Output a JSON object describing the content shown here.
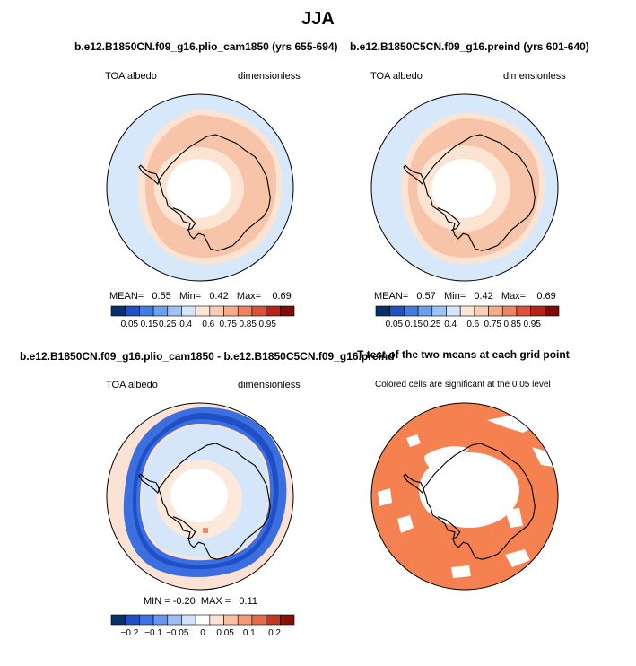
{
  "figure": {
    "title": "JJA"
  },
  "colorbars": {
    "albedo": {
      "colors": [
        "#08306b",
        "#2150c0",
        "#3f7de0",
        "#6a9eee",
        "#9ec3f7",
        "#d3e6fb",
        "#fde6d6",
        "#fbcdb5",
        "#f6ab8a",
        "#ec8460",
        "#d9533a",
        "#b42417",
        "#7f0c08"
      ],
      "labels": [
        "0.05",
        "0.15",
        "0.25",
        "0.4",
        "0.6",
        "0.75",
        "0.85",
        "0.95"
      ]
    },
    "diff": {
      "colors": [
        "#08306b",
        "#1f4fc6",
        "#3b72e4",
        "#6896ee",
        "#9dbdf6",
        "#d1e3fb",
        "#ffffff",
        "#fde2d4",
        "#f9c0a4",
        "#f29a76",
        "#e46b47",
        "#c4381f",
        "#87100a"
      ],
      "labels": [
        "−0.2",
        "−0.1",
        "−0.05",
        "0",
        "0.05",
        "0.1",
        "0.2"
      ]
    }
  },
  "panels": [
    {
      "title": "b.e12.B1850CN.f09_g16.plio_cam1850 (yrs 655-694)",
      "left_label": "TOA albedo",
      "right_label": "dimensionless",
      "stats": {
        "mean_label": "MEAN=",
        "mean": "0.55",
        "min_label": "Min=",
        "min": "0.42",
        "max_label": "Max=",
        "max": "0.69"
      }
    },
    {
      "title": "b.e12.B1850C5CN.f09_g16.preind (yrs 601-640)",
      "left_label": "TOA albedo",
      "right_label": "dimensionless",
      "stats": {
        "mean_label": "MEAN=",
        "mean": "0.57",
        "min_label": "Min=",
        "min": "0.42",
        "max_label": "Max=",
        "max": "0.69"
      }
    },
    {
      "title": "b.e12.B1850CN.f09_g16.plio_cam1850 - b.e12.B1850C5CN.f09_g16.preind",
      "left_label": "TOA albedo",
      "right_label": "dimensionless",
      "stats": {
        "min_label": "MIN =",
        "min": "-0.20",
        "max_label": "MAX =",
        "max": "0.11"
      }
    },
    {
      "title": "T-test of the two means at each grid point",
      "subtitle": "Colored cells are significant at the 0.05 level"
    }
  ],
  "chart_data": [
    {
      "type": "heatmap",
      "map": "polar-stereographic (South Pole)",
      "variable": "TOA albedo",
      "units": "dimensionless",
      "season": "JJA",
      "case": "b.e12.B1850CN.f09_g16.plio_cam1850 (yrs 655-694)",
      "mean": 0.55,
      "min": 0.42,
      "max": 0.69,
      "contour_levels": [
        0.05,
        0.15,
        0.25,
        0.4,
        0.6,
        0.75,
        0.85,
        0.95
      ]
    },
    {
      "type": "heatmap",
      "map": "polar-stereographic (South Pole)",
      "variable": "TOA albedo",
      "units": "dimensionless",
      "season": "JJA",
      "case": "b.e12.B1850C5CN.f09_g16.preind (yrs 601-640)",
      "mean": 0.57,
      "min": 0.42,
      "max": 0.69,
      "contour_levels": [
        0.05,
        0.15,
        0.25,
        0.4,
        0.6,
        0.75,
        0.85,
        0.95
      ]
    },
    {
      "type": "heatmap",
      "map": "polar-stereographic (South Pole)",
      "variable": "TOA albedo difference",
      "units": "dimensionless",
      "case": "b.e12.B1850CN.f09_g16.plio_cam1850 - b.e12.B1850C5CN.f09_g16.preind",
      "min": -0.2,
      "max": 0.11,
      "contour_levels": [
        -0.2,
        -0.1,
        -0.05,
        0,
        0.05,
        0.1,
        0.2
      ]
    },
    {
      "type": "heatmap",
      "map": "polar-stereographic (South Pole)",
      "variable": "significance mask",
      "case": "T-test of the two means at each grid point",
      "significance_level": 0.05
    }
  ]
}
